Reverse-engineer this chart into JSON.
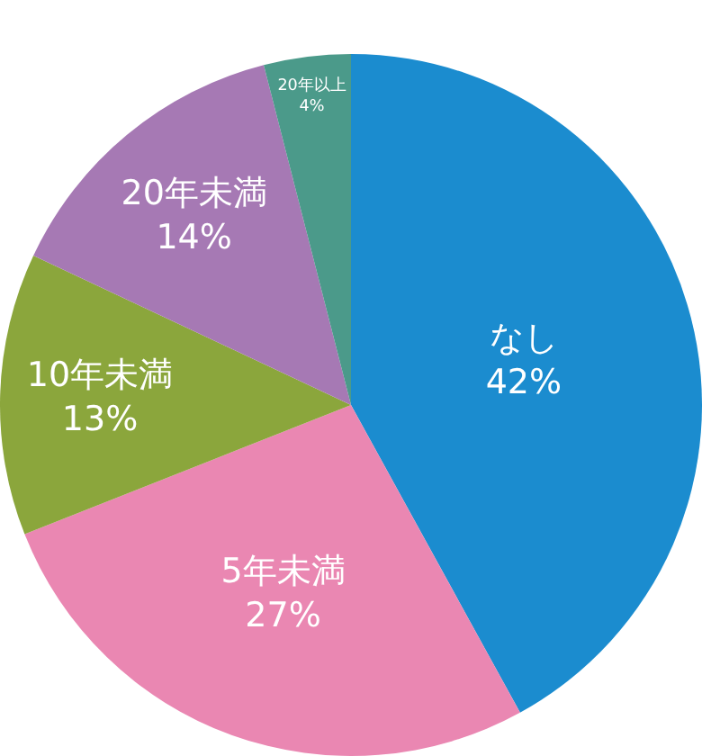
{
  "chart_data": {
    "type": "pie",
    "categories": [
      "なし",
      "5年未満",
      "10年未満",
      "20年未満",
      "20年以上"
    ],
    "values": [
      42,
      27,
      13,
      14,
      4
    ],
    "value_labels": [
      "42%",
      "27%",
      "13%",
      "14%",
      "4%"
    ],
    "colors": [
      "#1b8ccf",
      "#ea87b2",
      "#8ba63c",
      "#a679b4",
      "#4b9a8a"
    ],
    "legend": false
  }
}
